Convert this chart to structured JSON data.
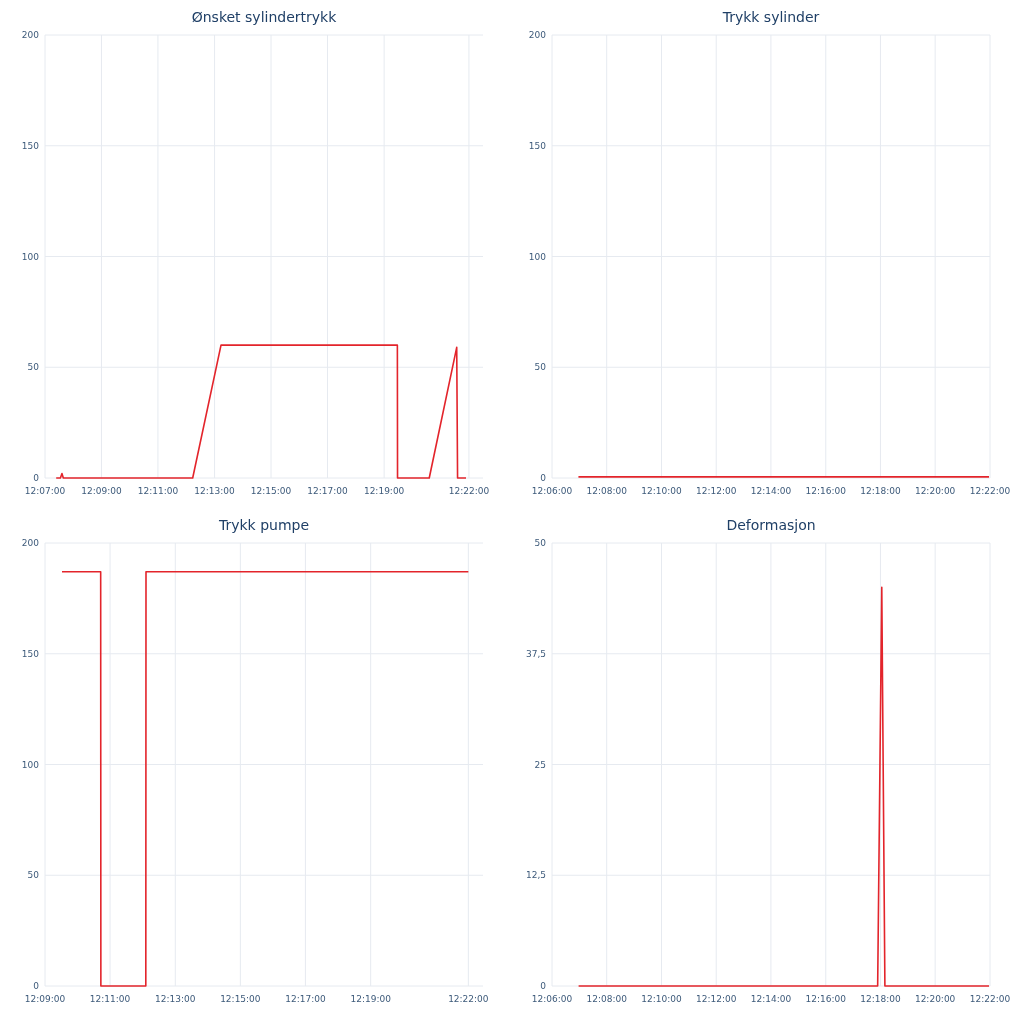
{
  "chart_data": [
    {
      "type": "line",
      "title": "Ønsket sylindertrykk",
      "xlim": [
        12.1167,
        12.375
      ],
      "xticks": [
        {
          "value": 12.1167,
          "label": "12:07:00"
        },
        {
          "value": 12.15,
          "label": "12:09:00"
        },
        {
          "value": 12.1833,
          "label": "12:11:00"
        },
        {
          "value": 12.2167,
          "label": "12:13:00"
        },
        {
          "value": 12.25,
          "label": "12:15:00"
        },
        {
          "value": 12.2833,
          "label": "12:17:00"
        },
        {
          "value": 12.3167,
          "label": "12:19:00"
        },
        {
          "value": 12.3667,
          "label": "12:22:00"
        }
      ],
      "ylim": [
        0,
        200
      ],
      "yticks": [
        0,
        50,
        100,
        150,
        200
      ],
      "grid": true,
      "series": [
        {
          "color": "#e3242b",
          "x": [
            12.1233,
            12.1258,
            12.1267,
            12.1275,
            12.2038,
            12.2205,
            12.3245,
            12.3246,
            12.3433,
            12.3595,
            12.36,
            12.365
          ],
          "values": [
            0,
            0,
            2,
            0,
            0,
            60,
            60,
            0,
            0,
            59,
            0,
            0
          ]
        }
      ]
    },
    {
      "type": "line",
      "title": "Trykk sylinder",
      "xlim": [
        12.1,
        12.3667
      ],
      "xticks": [
        {
          "value": 12.1,
          "label": "12:06:00"
        },
        {
          "value": 12.1333,
          "label": "12:08:00"
        },
        {
          "value": 12.1667,
          "label": "12:10:00"
        },
        {
          "value": 12.2,
          "label": "12:12:00"
        },
        {
          "value": 12.2333,
          "label": "12:14:00"
        },
        {
          "value": 12.2667,
          "label": "12:16:00"
        },
        {
          "value": 12.3,
          "label": "12:18:00"
        },
        {
          "value": 12.3333,
          "label": "12:20:00"
        },
        {
          "value": 12.3667,
          "label": "12:22:00"
        }
      ],
      "ylim": [
        0,
        200
      ],
      "yticks": [
        0,
        50,
        100,
        150,
        200
      ],
      "grid": true,
      "series": [
        {
          "color": "#e3242b",
          "x": [
            12.1161,
            12.15,
            12.2,
            12.25,
            12.3,
            12.3661
          ],
          "values": [
            0.5,
            0.5,
            0.5,
            0.5,
            0.5,
            0.5
          ]
        }
      ]
    },
    {
      "type": "line",
      "title": "Trykk pumpe",
      "xlim": [
        12.15,
        12.3742
      ],
      "xticks": [
        {
          "value": 12.15,
          "label": "12:09:00"
        },
        {
          "value": 12.1833,
          "label": "12:11:00"
        },
        {
          "value": 12.2167,
          "label": "12:13:00"
        },
        {
          "value": 12.25,
          "label": "12:15:00"
        },
        {
          "value": 12.2833,
          "label": "12:17:00"
        },
        {
          "value": 12.3167,
          "label": "12:19:00"
        },
        {
          "value": 12.3667,
          "label": "12:22:00"
        }
      ],
      "ylim": [
        0,
        200
      ],
      "yticks": [
        0,
        50,
        100,
        150,
        200
      ],
      "grid": true,
      "series": [
        {
          "color": "#e3242b",
          "x": [
            12.1587,
            12.1785,
            12.1786,
            12.2016,
            12.2017,
            12.3667
          ],
          "values": [
            187,
            187,
            0,
            0,
            187,
            187
          ]
        }
      ]
    },
    {
      "type": "line",
      "title": "Deformasjon",
      "xlim": [
        12.1,
        12.3667
      ],
      "xticks": [
        {
          "value": 12.1,
          "label": "12:06:00"
        },
        {
          "value": 12.1333,
          "label": "12:08:00"
        },
        {
          "value": 12.1667,
          "label": "12:10:00"
        },
        {
          "value": 12.2,
          "label": "12:12:00"
        },
        {
          "value": 12.2333,
          "label": "12:14:00"
        },
        {
          "value": 12.2667,
          "label": "12:16:00"
        },
        {
          "value": 12.3,
          "label": "12:18:00"
        },
        {
          "value": 12.3333,
          "label": "12:20:00"
        },
        {
          "value": 12.3667,
          "label": "12:22:00"
        }
      ],
      "ylim": [
        0,
        50
      ],
      "yticks": [
        0,
        {
          "value": 12.5,
          "label": "12,5"
        },
        25,
        {
          "value": 37.5,
          "label": "37,5"
        },
        50
      ],
      "grid": true,
      "series": [
        {
          "color": "#e3242b",
          "x": [
            12.1162,
            12.2,
            12.2983,
            12.3008,
            12.3027,
            12.3333,
            12.3661
          ],
          "values": [
            0,
            0,
            0,
            45,
            0,
            0,
            0
          ]
        }
      ]
    }
  ]
}
